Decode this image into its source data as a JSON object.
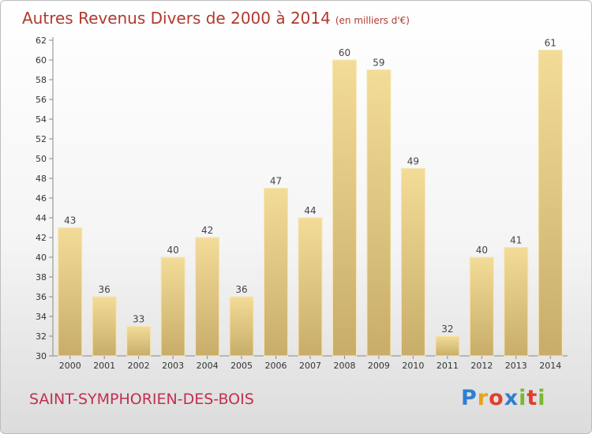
{
  "header": {
    "title": "Autres Revenus Divers de 2000 à 2014",
    "unit": "(en milliers d'€)"
  },
  "footer": {
    "town": "SAINT-SYMPHORIEN-DES-BOIS",
    "logo_letters": [
      "P",
      "r",
      "o",
      "x",
      "i",
      "t",
      "i"
    ],
    "logo_colors": [
      "#2f7fd0",
      "#e8a21c",
      "#e0402a",
      "#2f7fd0",
      "#7cb82f",
      "#e0402a",
      "#7cb82f"
    ]
  },
  "colors": {
    "bar_top": "#f3dc98",
    "bar_bottom": "#c8ad6a",
    "text": "#333333"
  },
  "chart_data": {
    "type": "bar",
    "categories": [
      "2000",
      "2001",
      "2002",
      "2003",
      "2004",
      "2005",
      "2006",
      "2007",
      "2008",
      "2009",
      "2010",
      "2011",
      "2012",
      "2013",
      "2014"
    ],
    "values": [
      43,
      36,
      33,
      40,
      42,
      36,
      47,
      44,
      60,
      59,
      49,
      32,
      40,
      41,
      61
    ],
    "ylim": [
      30,
      62
    ],
    "yticks": [
      30,
      32,
      34,
      36,
      38,
      40,
      42,
      44,
      46,
      48,
      50,
      52,
      54,
      56,
      58,
      60,
      62
    ],
    "grid": false,
    "legend": "none"
  }
}
